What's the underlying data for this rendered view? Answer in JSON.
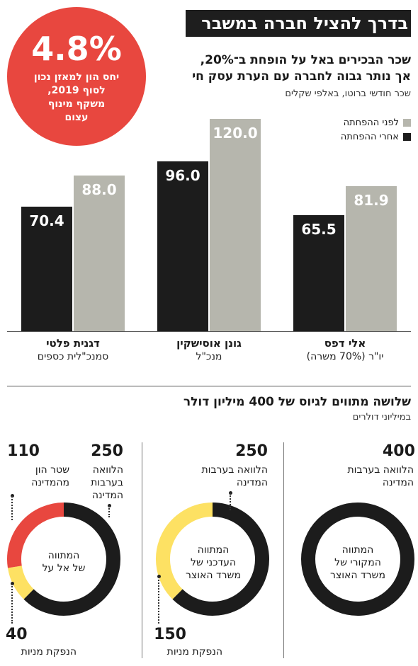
{
  "header": {
    "title": "בדרך להציל חברה במשבר"
  },
  "badge": {
    "value": "4.8%",
    "lines": [
      "יחס הון למאזן נכון",
      "לסוף 2019,",
      "משקף מינוף",
      "עצום"
    ]
  },
  "colors": {
    "before": "#b6b6ad",
    "after": "#1c1c1c",
    "accent": "#e8473f",
    "yellow": "#fde163",
    "black": "#1c1c1c"
  },
  "chart_data": [
    {
      "type": "bar",
      "title": "שכר הבכירים באל על הופחת ב־20%, אך נותר גבוה לחברה עם הערת עסק חי",
      "subtitle_lines": [
        "שכר הבכירים באל על הופחת ב־20%,",
        "אך נותר גבוה לחברה עם הערת עסק חי"
      ],
      "units": "שכר חודשי ברוטו, באלפי שקלים",
      "legend": [
        "לפני ההפחתה",
        "אחרי ההפחתה"
      ],
      "categories": [
        {
          "name": "אלי דפס",
          "role": "יו\"ר (70% משרה)"
        },
        {
          "name": "גונן אוסישקין",
          "role": "מנכ\"ל"
        },
        {
          "name": "דגנית פלטי",
          "role": "סמנכ\"לית כספים"
        }
      ],
      "series": [
        {
          "name": "לפני ההפחתה",
          "values": [
            81.9,
            120.0,
            88.0
          ],
          "labels": [
            "81.9",
            "120.0",
            "88.0"
          ]
        },
        {
          "name": "אחרי ההפחתה",
          "values": [
            65.5,
            96.0,
            70.4
          ],
          "labels": [
            "65.5",
            "96.0",
            "70.4"
          ]
        }
      ],
      "ylim": [
        0,
        120
      ]
    },
    {
      "type": "pie",
      "title": "שלושה מתווים לגיוס של 400 מיליון דולר",
      "units": "במיליוני דולרים",
      "donuts": [
        {
          "center": [
            "המתווה",
            "המקורי של",
            "משרד האוצר"
          ],
          "slices": [
            {
              "value": 400,
              "value_label": "400",
              "label": [
                "הלוואה בערבות",
                "המדינה"
              ],
              "color": "black"
            }
          ]
        },
        {
          "center": [
            "המתווה",
            "העדכני של",
            "משרד האוצר"
          ],
          "slices": [
            {
              "value": 250,
              "value_label": "250",
              "label": [
                "הלוואה בערבות",
                "המדינה"
              ],
              "color": "black"
            },
            {
              "value": 150,
              "value_label": "150",
              "label": [
                "הנפקת מניות"
              ],
              "color": "yellow"
            }
          ]
        },
        {
          "center": [
            "המתווה",
            "של אל על"
          ],
          "slices": [
            {
              "value": 250,
              "value_label": "250",
              "label": [
                "הלוואה",
                "בערבות",
                "המדינה"
              ],
              "color": "black"
            },
            {
              "value": 40,
              "value_label": "40",
              "label": [
                "הנפקת מניות"
              ],
              "color": "yellow"
            },
            {
              "value": 110,
              "value_label": "110",
              "label": [
                "שטר הון",
                "מהמדינה"
              ],
              "color": "accent"
            }
          ]
        }
      ]
    }
  ]
}
